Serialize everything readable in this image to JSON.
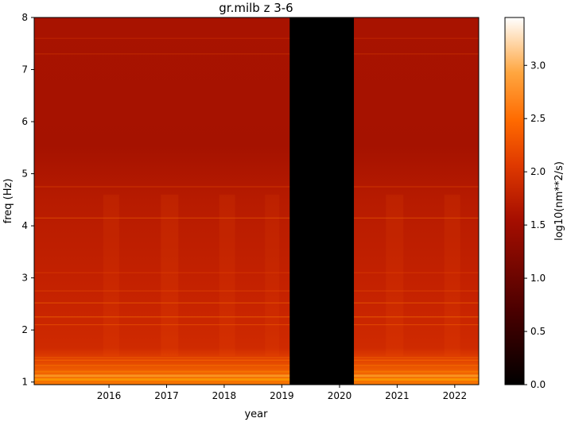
{
  "chart_data": {
    "type": "heatmap",
    "title": "gr.milb z 3-6",
    "xlabel": "year",
    "ylabel": "freq (Hz)",
    "x_range": [
      "2015-03-15",
      "2022-11-30"
    ],
    "ylim": [
      0.95,
      8.0
    ],
    "x_ticks": [
      "2016",
      "2017",
      "2018",
      "2019",
      "2020",
      "2021",
      "2022"
    ],
    "y_ticks": [
      "1",
      "2",
      "3",
      "4",
      "5",
      "6",
      "7",
      "8"
    ],
    "data_gap": [
      "2019-08-20",
      "2020-09-30"
    ],
    "colormap": "gist_heat",
    "colorbar": {
      "label": "log10(nm**2/s)",
      "range": [
        0.0,
        3.45
      ],
      "ticks": [
        "0.0",
        "0.5",
        "1.0",
        "1.5",
        "2.0",
        "2.5",
        "3.0"
      ]
    },
    "approx_levels": [
      {
        "freq_range": [
          0.95,
          1.3
        ],
        "value": 2.3
      },
      {
        "freq_range": [
          1.3,
          1.5
        ],
        "value": 1.9
      },
      {
        "freq_range": [
          1.5,
          4.5
        ],
        "value": 1.65
      },
      {
        "freq_range": [
          4.5,
          8.0
        ],
        "value": 1.35
      }
    ],
    "grid": false
  }
}
